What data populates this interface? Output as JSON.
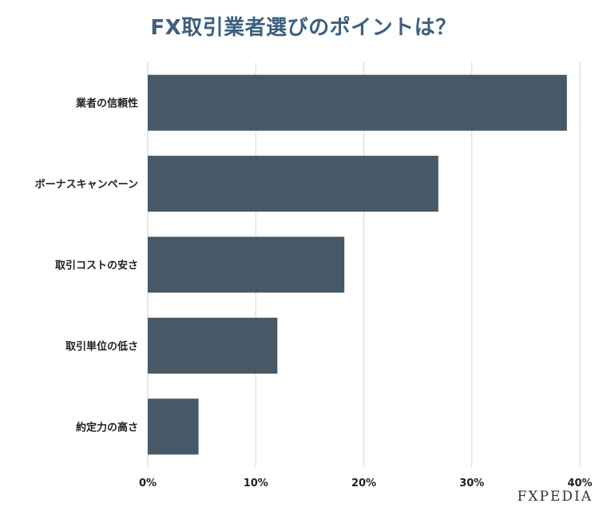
{
  "chart_data": {
    "type": "bar",
    "orientation": "horizontal",
    "title": "FX取引業者選びのポイントは？",
    "categories": [
      "業者の信頼性",
      "ボーナスキャンペーン",
      "取引コストの安さ",
      "取引単位の低さ",
      "約定力の高さ"
    ],
    "values": [
      38.8,
      26.9,
      18.2,
      12.0,
      4.7
    ],
    "xlim": [
      0,
      40
    ],
    "xticks": [
      "0%",
      "10%",
      "20%",
      "30%",
      "40%"
    ],
    "xtick_values": [
      0,
      10,
      20,
      30,
      40
    ],
    "grid": "vertical",
    "bar_color": "#475866"
  },
  "brand": "FXPEDIA"
}
